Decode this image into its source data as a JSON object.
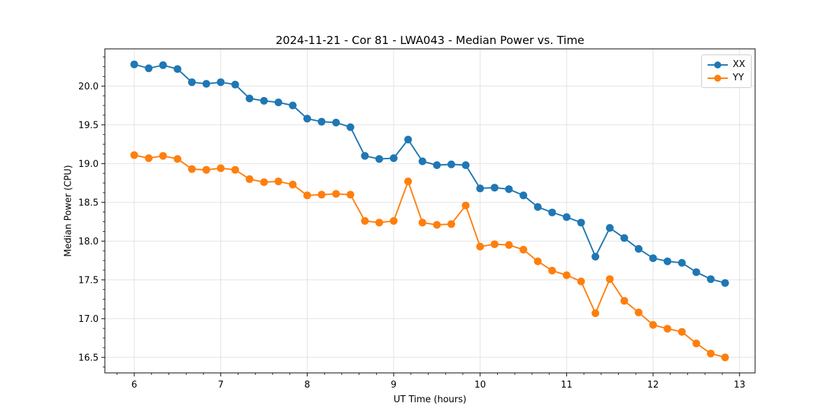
{
  "chart_data": {
    "type": "line",
    "title": "2024-11-21 - Cor 81 - LWA043 - Median Power vs. Time",
    "xlabel": "UT Time (hours)",
    "ylabel": "Median Power (CPU)",
    "xlim": [
      5.66,
      13.18
    ],
    "ylim": [
      16.3,
      20.48
    ],
    "grid": true,
    "legend_position": "upper right",
    "x_minor_step": 0.2,
    "y_minor_step": 0.125,
    "xticks": {
      "positions": [
        6,
        7,
        8,
        9,
        10,
        11,
        12,
        13
      ],
      "labels": [
        "6",
        "7",
        "8",
        "9",
        "10",
        "11",
        "12",
        "13"
      ]
    },
    "yticks": {
      "positions": [
        16.5,
        17.0,
        17.5,
        18.0,
        18.5,
        19.0,
        19.5,
        20.0
      ],
      "labels": [
        "16.5",
        "17.0",
        "17.5",
        "18.0",
        "18.5",
        "19.0",
        "19.5",
        "20.0"
      ]
    },
    "x": [
      6.0,
      6.167,
      6.333,
      6.5,
      6.667,
      6.833,
      7.0,
      7.167,
      7.333,
      7.5,
      7.667,
      7.833,
      8.0,
      8.167,
      8.333,
      8.5,
      8.667,
      8.833,
      9.0,
      9.167,
      9.333,
      9.5,
      9.667,
      9.833,
      10.0,
      10.167,
      10.333,
      10.5,
      10.667,
      10.833,
      11.0,
      11.167,
      11.333,
      11.5,
      11.667,
      11.833,
      12.0,
      12.167,
      12.333,
      12.5,
      12.667,
      12.833
    ],
    "series": [
      {
        "name": "XX",
        "color": "#1f77b4",
        "values": [
          20.28,
          20.23,
          20.27,
          20.22,
          20.05,
          20.03,
          20.05,
          20.02,
          19.84,
          19.81,
          19.79,
          19.75,
          19.58,
          19.54,
          19.53,
          19.47,
          19.1,
          19.06,
          19.07,
          19.31,
          19.03,
          18.98,
          18.99,
          18.98,
          18.68,
          18.69,
          18.67,
          18.59,
          18.44,
          18.37,
          18.31,
          18.24,
          17.8,
          18.17,
          18.04,
          17.9,
          17.78,
          17.74,
          17.72,
          17.6,
          17.51,
          17.46
        ]
      },
      {
        "name": "YY",
        "color": "#ff7f0e",
        "values": [
          19.11,
          19.07,
          19.1,
          19.06,
          18.93,
          18.92,
          18.94,
          18.92,
          18.8,
          18.76,
          18.77,
          18.73,
          18.59,
          18.6,
          18.61,
          18.6,
          18.26,
          18.24,
          18.26,
          18.77,
          18.24,
          18.21,
          18.22,
          18.46,
          17.93,
          17.96,
          17.95,
          17.89,
          17.74,
          17.62,
          17.56,
          17.48,
          17.07,
          17.51,
          17.23,
          17.08,
          16.92,
          16.87,
          16.83,
          16.68,
          16.55,
          16.5
        ]
      }
    ]
  },
  "style": {
    "grid_color": "#e2e2e2",
    "spine_color": "#000000",
    "tick_color": "#000000",
    "background": "#ffffff"
  }
}
